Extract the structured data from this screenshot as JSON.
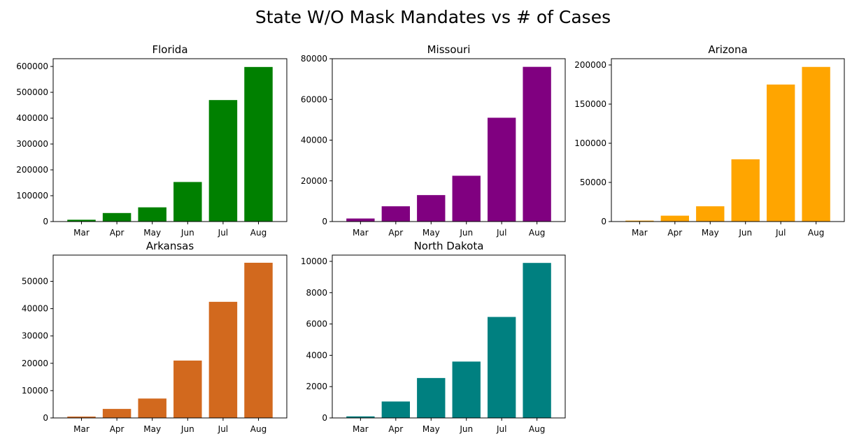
{
  "figure": {
    "title": "State W/O Mask Mandates vs # of Cases"
  },
  "chart_data": [
    {
      "type": "bar",
      "title": "Florida",
      "categories": [
        "Mar",
        "Apr",
        "May",
        "Jun",
        "Jul",
        "Aug"
      ],
      "values": [
        7000,
        33000,
        55000,
        153000,
        470000,
        598000
      ],
      "color": "#008000",
      "ylim": [
        0,
        630000
      ],
      "yticks": [
        0,
        100000,
        200000,
        300000,
        400000,
        500000,
        600000
      ],
      "ytick_labels": [
        "0",
        "100000",
        "200000",
        "300000",
        "400000",
        "500000",
        "600000"
      ],
      "xlabel": "",
      "ylabel": "",
      "grid": false
    },
    {
      "type": "bar",
      "title": "Missouri",
      "categories": [
        "Mar",
        "Apr",
        "May",
        "Jun",
        "Jul",
        "Aug"
      ],
      "values": [
        1500,
        7500,
        13000,
        22500,
        51000,
        76000
      ],
      "color": "#800080",
      "ylim": [
        0,
        80000
      ],
      "yticks": [
        0,
        20000,
        40000,
        60000,
        80000
      ],
      "ytick_labels": [
        "0",
        "20000",
        "40000",
        "60000",
        "80000"
      ],
      "xlabel": "",
      "ylabel": "",
      "grid": false
    },
    {
      "type": "bar",
      "title": "Arizona",
      "categories": [
        "Mar",
        "Apr",
        "May",
        "Jun",
        "Jul",
        "Aug"
      ],
      "values": [
        1200,
        7500,
        19500,
        79500,
        175000,
        197500
      ],
      "color": "#FFA500",
      "ylim": [
        0,
        208000
      ],
      "yticks": [
        0,
        50000,
        100000,
        150000,
        200000
      ],
      "ytick_labels": [
        "0",
        "50000",
        "100000",
        "150000",
        "200000"
      ],
      "xlabel": "",
      "ylabel": "",
      "grid": false
    },
    {
      "type": "bar",
      "title": "Arkansas",
      "categories": [
        "Mar",
        "Apr",
        "May",
        "Jun",
        "Jul",
        "Aug"
      ],
      "values": [
        500,
        3300,
        7100,
        21000,
        42500,
        56800
      ],
      "color": "#D2691E",
      "ylim": [
        0,
        59600
      ],
      "yticks": [
        0,
        10000,
        20000,
        30000,
        40000,
        50000
      ],
      "ytick_labels": [
        "0",
        "10000",
        "20000",
        "30000",
        "40000",
        "50000"
      ],
      "xlabel": "",
      "ylabel": "",
      "grid": false
    },
    {
      "type": "bar",
      "title": "North Dakota",
      "categories": [
        "Mar",
        "Apr",
        "May",
        "Jun",
        "Jul",
        "Aug"
      ],
      "values": [
        100,
        1050,
        2550,
        3600,
        6450,
        9900
      ],
      "color": "#008080",
      "ylim": [
        0,
        10400
      ],
      "yticks": [
        0,
        2000,
        4000,
        6000,
        8000,
        10000
      ],
      "ytick_labels": [
        "0",
        "2000",
        "4000",
        "6000",
        "8000",
        "10000"
      ],
      "xlabel": "",
      "ylabel": "",
      "grid": false
    }
  ]
}
